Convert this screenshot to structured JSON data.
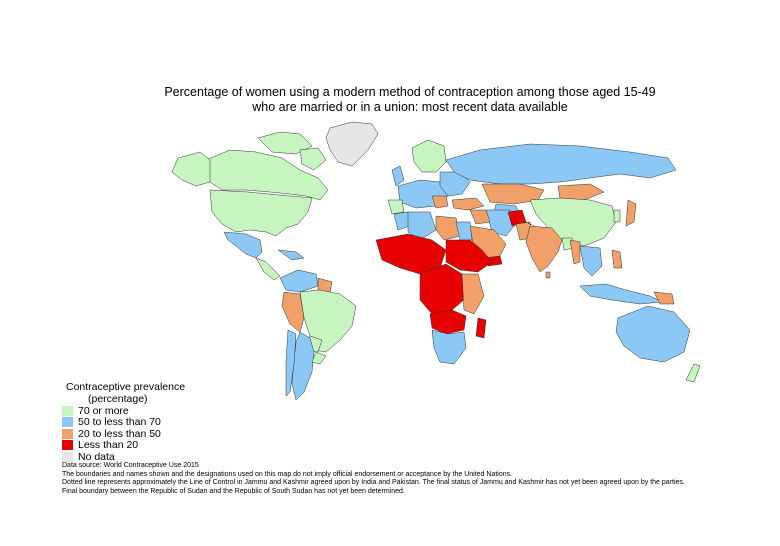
{
  "title": {
    "line1": "Percentage of women using a modern method of contraception among those aged 15-49",
    "line2": "who are married or in a union: most recent data available"
  },
  "legend": {
    "title_line1": "Contraceptive prevalence",
    "title_line2": "(percentage)",
    "items": [
      {
        "label": "70 or more",
        "color": "#c6f5c0"
      },
      {
        "label": "50 to less than 70",
        "color": "#8cc8f5"
      },
      {
        "label": "20 to less than 50",
        "color": "#f0a068"
      },
      {
        "label": "Less than 20",
        "color": "#e60000"
      },
      {
        "label": "No data",
        "color": "#e6e6e6"
      }
    ]
  },
  "notes": [
    "Data source: World Contraceptive Use 2015",
    "The boundaries and names shown and the designations used on this map do not imply official endorsement or acceptance by the United Nations.",
    "Dotted line represents approximately the Line of Control in Jammu and Kashmir agreed upon by India and Pakistan. The final status of Jammu and Kashmir has not yet been agreed upon by the parties.",
    "Final boundary between the Republic of Sudan and the Republic of South Sudan has not yet been determined."
  ]
}
